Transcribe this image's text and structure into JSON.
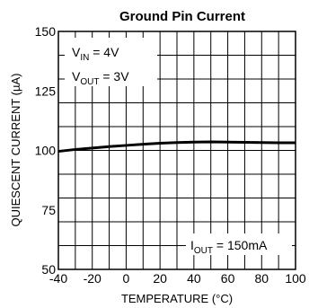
{
  "chart_data": {
    "type": "line",
    "title": "Ground Pin Current",
    "xlabel": "TEMPERATURE (°C)",
    "ylabel": "QUIESCENT CURRENT (µA)",
    "xlim": [
      -40,
      100
    ],
    "ylim": [
      50,
      150
    ],
    "xticks": [
      -40,
      -20,
      0,
      20,
      40,
      60,
      80,
      100
    ],
    "yticks": [
      50,
      75,
      100,
      125,
      150
    ],
    "grid": true,
    "x_grid_step": 10,
    "y_grid_step": 10,
    "series": [
      {
        "x": [
          -40,
          -30,
          -20,
          -10,
          0,
          10,
          20,
          30,
          40,
          50,
          60,
          70,
          80,
          90,
          100
        ],
        "values": [
          99.6,
          100.4,
          101.0,
          101.6,
          102.1,
          102.6,
          103.0,
          103.3,
          103.5,
          103.6,
          103.5,
          103.4,
          103.3,
          103.2,
          103.2
        ]
      }
    ],
    "annotations": {
      "vin": {
        "main": "V",
        "sub": "IN",
        "rest": " = 4V"
      },
      "vout": {
        "main": "V",
        "sub": "OUT",
        "rest": " = 3V"
      },
      "iout": {
        "main": "I",
        "sub": "OUT",
        "rest": " = 150mA"
      }
    }
  }
}
